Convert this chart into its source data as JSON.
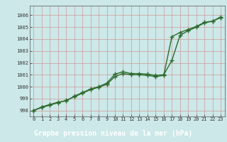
{
  "xlabel": "Graphe pression niveau de la mer (hPa)",
  "xlim": [
    -0.5,
    23.5
  ],
  "ylim": [
    997.5,
    1006.8
  ],
  "yticks": [
    998,
    999,
    1000,
    1001,
    1002,
    1003,
    1004,
    1005,
    1006
  ],
  "xticks": [
    0,
    1,
    2,
    3,
    4,
    5,
    6,
    7,
    8,
    9,
    10,
    11,
    12,
    13,
    14,
    15,
    16,
    17,
    18,
    19,
    20,
    21,
    22,
    23
  ],
  "plot_bg_color": "#cce8e8",
  "label_bg_color": "#2e7d32",
  "label_text_color": "#ffffff",
  "grid_color": "#cc9999",
  "line_color1": "#2d6a2d",
  "line_color2": "#2d6a2d",
  "series1": [
    998.0,
    998.3,
    998.5,
    998.7,
    998.8,
    999.2,
    999.5,
    999.8,
    1000.0,
    1000.3,
    1001.05,
    1001.25,
    1001.1,
    1001.1,
    1001.05,
    1000.95,
    1001.0,
    1002.2,
    1004.3,
    1004.7,
    1005.0,
    1005.35,
    1005.5,
    1005.85
  ],
  "series2": [
    998.0,
    998.25,
    998.45,
    998.65,
    998.85,
    999.15,
    999.45,
    999.75,
    999.95,
    1000.2,
    1000.85,
    1001.1,
    1001.0,
    1001.0,
    1000.95,
    1000.85,
    1000.95,
    1004.2,
    1004.55,
    1004.8,
    1005.05,
    1005.4,
    1005.5,
    1005.8
  ],
  "marker": "+",
  "marker_size": 4,
  "linewidth": 1.0
}
